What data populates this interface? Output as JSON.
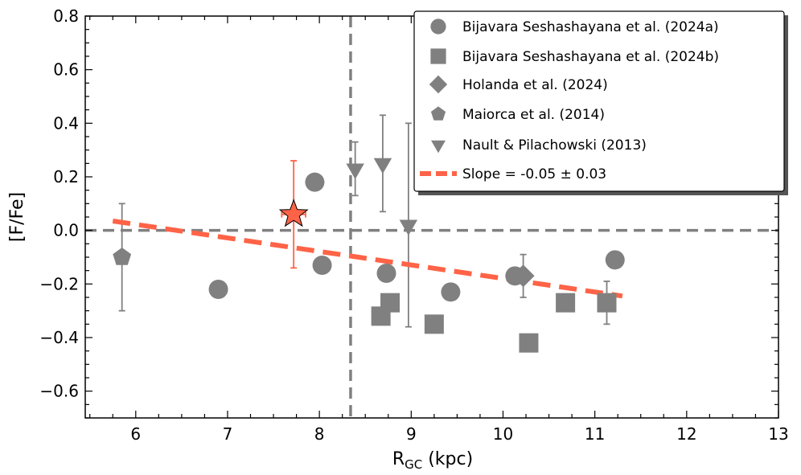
{
  "chart_data": {
    "type": "scatter",
    "xlabel": "R",
    "xlabel_sub": "GC",
    "xlabel_unit": " (kpc)",
    "ylabel": "[F/Fe]",
    "xlim": [
      5.45,
      13
    ],
    "ylim": [
      -0.7,
      0.8
    ],
    "xticks": [
      6,
      7,
      8,
      9,
      10,
      11,
      12,
      13
    ],
    "yticks": [
      0.8,
      0.6,
      0.4,
      0.2,
      0.0,
      -0.2,
      -0.4,
      -0.6
    ],
    "xtick_labels": [
      "6",
      "7",
      "8",
      "9",
      "10",
      "11",
      "12",
      "13"
    ],
    "ytick_labels": [
      "0.8",
      "0.6",
      "0.4",
      "0.2",
      "0.0",
      "−0.2",
      "−0.4",
      "−0.6"
    ],
    "hline_y": 0.0,
    "vline_x": 8.34,
    "marker_color": "#808080",
    "fit_color": "#ff6347",
    "series": [
      {
        "name": "Bijavara Seshashayana et al. (2024a)",
        "marker": "circle",
        "points": [
          {
            "x": 6.9,
            "y": -0.22,
            "err": 0.01
          },
          {
            "x": 7.95,
            "y": 0.18,
            "err": 0.01
          },
          {
            "x": 8.03,
            "y": -0.13,
            "err": 0.02
          },
          {
            "x": 8.73,
            "y": -0.16,
            "err": 0.03
          },
          {
            "x": 9.43,
            "y": -0.23,
            "err": 0.01
          },
          {
            "x": 10.13,
            "y": -0.17,
            "err": 0.01
          },
          {
            "x": 11.22,
            "y": -0.11,
            "err": 0.02
          }
        ]
      },
      {
        "name": "Bijavara Seshashayana et al. (2024b)",
        "marker": "square",
        "points": [
          {
            "x": 8.67,
            "y": -0.32,
            "err": 0.02
          },
          {
            "x": 8.77,
            "y": -0.27,
            "err": 0.02
          },
          {
            "x": 9.25,
            "y": -0.35,
            "err": 0.03
          },
          {
            "x": 10.28,
            "y": -0.42,
            "err": 0.02
          },
          {
            "x": 10.68,
            "y": -0.27,
            "err": 0.02
          },
          {
            "x": 11.13,
            "y": -0.27,
            "err": 0.08
          }
        ]
      },
      {
        "name": "Holanda et al. (2024)",
        "marker": "diamond",
        "points": [
          {
            "x": 10.22,
            "y": -0.17,
            "err": 0.08
          }
        ]
      },
      {
        "name": "Maiorca et al. (2014)",
        "marker": "pentagon",
        "points": [
          {
            "x": 5.85,
            "y": -0.1,
            "err": 0.2
          }
        ]
      },
      {
        "name": "Nault & Pilachowski (2013)",
        "marker": "triangle-down",
        "points": [
          {
            "x": 8.39,
            "y": 0.23,
            "err": 0.1
          },
          {
            "x": 8.69,
            "y": 0.25,
            "err": 0.18
          },
          {
            "x": 8.97,
            "y": 0.02,
            "err": 0.38
          }
        ]
      }
    ],
    "star": {
      "x": 7.72,
      "y": 0.06,
      "xerr": 0.13,
      "yerr": 0.2
    },
    "fit": {
      "label": "Slope = -0.05 ± 0.03",
      "x": [
        5.75,
        11.3
      ],
      "y": [
        0.035,
        -0.245
      ]
    },
    "legend": [
      "Bijavara Seshashayana et al. (2024a)",
      "Bijavara Seshashayana et al. (2024b)",
      "Holanda et al. (2024)",
      "Maiorca et al. (2014)",
      "Nault & Pilachowski (2013)",
      "Slope = -0.05 ± 0.03"
    ],
    "legend_position": "top-right"
  }
}
